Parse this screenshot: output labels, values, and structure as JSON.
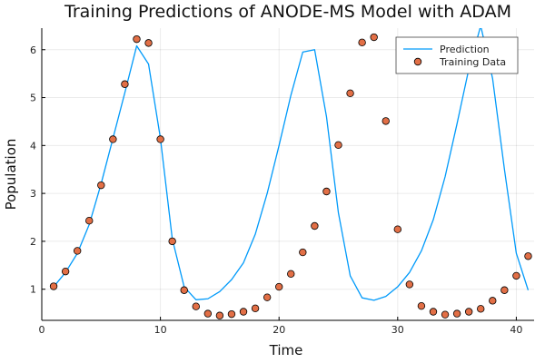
{
  "chart_data": {
    "type": "line",
    "title": "Training Predictions of ANODE-MS Model with ADAM",
    "xlabel": "Time",
    "ylabel": "Population",
    "xlim": [
      0,
      41.5
    ],
    "ylim": [
      0.35,
      6.45
    ],
    "xticks": [
      0,
      10,
      20,
      30,
      40
    ],
    "yticks": [
      1,
      2,
      3,
      4,
      5,
      6
    ],
    "grid": true,
    "legend_position": "top-right",
    "series": [
      {
        "name": "Prediction",
        "kind": "line",
        "color": "#009AFA",
        "x": [
          1,
          2,
          3,
          4,
          5,
          6,
          7,
          8,
          9,
          10,
          11,
          12,
          13,
          14,
          15,
          16,
          17,
          18,
          19,
          20,
          21,
          22,
          23,
          24,
          25,
          26,
          27,
          28,
          29,
          30,
          31,
          32,
          33,
          34,
          35,
          36,
          37,
          38,
          39,
          40,
          41
        ],
        "y": [
          1.05,
          1.35,
          1.75,
          2.35,
          3.2,
          4.15,
          5.1,
          6.08,
          5.7,
          4.15,
          2.05,
          1.05,
          0.78,
          0.8,
          0.95,
          1.2,
          1.55,
          2.15,
          3.0,
          4.0,
          5.05,
          5.95,
          6.0,
          4.6,
          2.6,
          1.28,
          0.82,
          0.77,
          0.85,
          1.05,
          1.35,
          1.8,
          2.45,
          3.35,
          4.45,
          5.6,
          6.5,
          5.4,
          3.5,
          1.75,
          0.98
        ]
      },
      {
        "name": "Training Data",
        "kind": "scatter",
        "color": "#E26F46",
        "x": [
          1,
          2,
          3,
          4,
          5,
          6,
          7,
          8,
          9,
          10,
          11,
          12,
          13,
          14,
          15,
          16,
          17,
          18,
          19,
          20,
          21,
          22,
          23,
          24,
          25,
          26,
          27,
          28,
          29,
          30,
          31,
          32,
          33,
          34,
          35,
          36,
          37,
          38,
          39,
          40,
          41
        ],
        "y": [
          1.06,
          1.37,
          1.8,
          2.43,
          3.17,
          4.13,
          5.28,
          6.22,
          6.14,
          4.13,
          2.0,
          0.98,
          0.64,
          0.49,
          0.45,
          0.48,
          0.53,
          0.6,
          0.83,
          1.05,
          1.32,
          1.77,
          2.32,
          3.04,
          4.01,
          5.09,
          6.15,
          6.26,
          4.51,
          2.25,
          1.1,
          0.65,
          0.53,
          0.47,
          0.49,
          0.53,
          0.59,
          0.76,
          0.98,
          1.28,
          1.69
        ]
      }
    ]
  }
}
